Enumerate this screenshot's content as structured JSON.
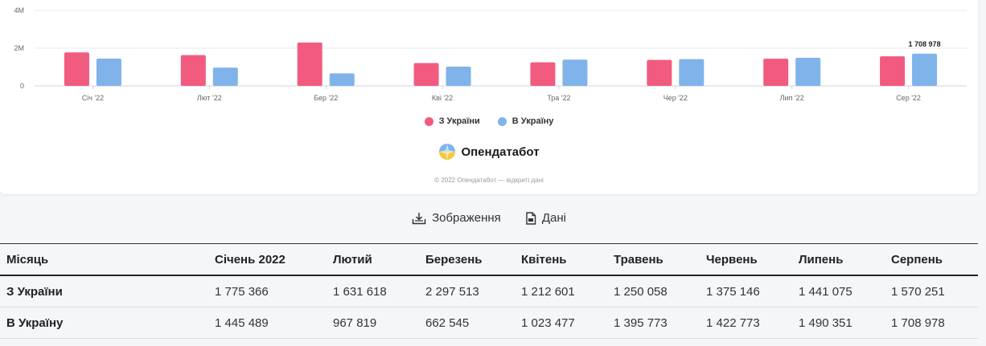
{
  "chart_data": {
    "type": "bar",
    "categories": [
      "Січ '22",
      "Лют '22",
      "Бер '22",
      "Кві '22",
      "Тра '22",
      "Чер '22",
      "Лип '22",
      "Сер '22"
    ],
    "series": [
      {
        "name": "З України",
        "color": "#f25b80",
        "values": [
          1775366,
          1631618,
          2297513,
          1212601,
          1250058,
          1375146,
          1441075,
          1570251
        ]
      },
      {
        "name": "В Україну",
        "color": "#7fb3ea",
        "values": [
          1445489,
          967819,
          662545,
          1023477,
          1395773,
          1422773,
          1490351,
          1708978
        ]
      }
    ],
    "yticks": [
      "0",
      "2M",
      "4M"
    ],
    "ylim": [
      0,
      4000000
    ],
    "data_label": "1 708 978",
    "grid": true,
    "legend_placement": "bottom"
  },
  "brand": {
    "name": "Опендатабот",
    "copyright": "© 2022 Опендатабот — відкриті дані"
  },
  "actions": {
    "image_label": "Зображення",
    "data_label": "Дані"
  },
  "table": {
    "headers": [
      "Місяць",
      "Січень 2022",
      "Лютий",
      "Березень",
      "Квітень",
      "Травень",
      "Червень",
      "Липень",
      "Серпень"
    ],
    "rows": [
      [
        "З України",
        "1 775 366",
        "1 631 618",
        "2 297 513",
        "1 212 601",
        "1 250 058",
        "1 375 146",
        "1 441 075",
        "1 570 251"
      ],
      [
        "В Україну",
        "1 445 489",
        "967 819",
        "662 545",
        "1 023 477",
        "1 395 773",
        "1 422 773",
        "1 490 351",
        "1 708 978"
      ]
    ]
  }
}
